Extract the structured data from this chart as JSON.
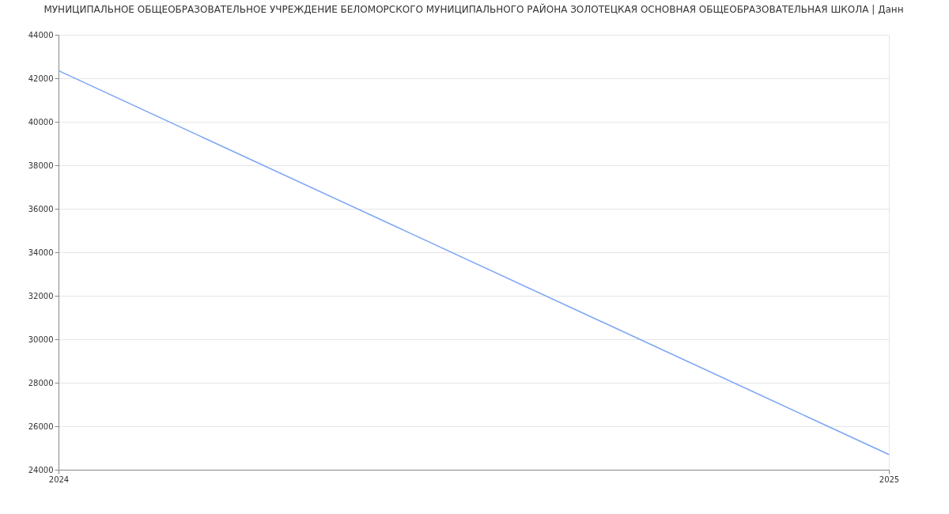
{
  "chart_data": {
    "type": "line",
    "title": "МУНИЦИПАЛЬНОЕ ОБЩЕОБРАЗОВАТЕЛЬНОЕ УЧРЕЖДЕНИЕ БЕЛОМОРСКОГО МУНИЦИПАЛЬНОГО РАЙОНА ЗОЛОТЕЦКАЯ ОСНОВНАЯ ОБЩЕОБРАЗОВАТЕЛЬНАЯ ШКОЛА  | Данн",
    "x": [
      2024,
      2025
    ],
    "series": [
      {
        "color": "#7aa3f5",
        "values": [
          42350,
          24700
        ]
      }
    ],
    "xlim": [
      2024,
      2025
    ],
    "xticks": [
      2024,
      2025
    ],
    "ylim": [
      24000,
      44000
    ],
    "yticks": [
      24000,
      26000,
      28000,
      30000,
      32000,
      34000,
      36000,
      38000,
      40000,
      42000,
      44000
    ],
    "grid": "y",
    "marker": "none",
    "line_style": "solid"
  }
}
